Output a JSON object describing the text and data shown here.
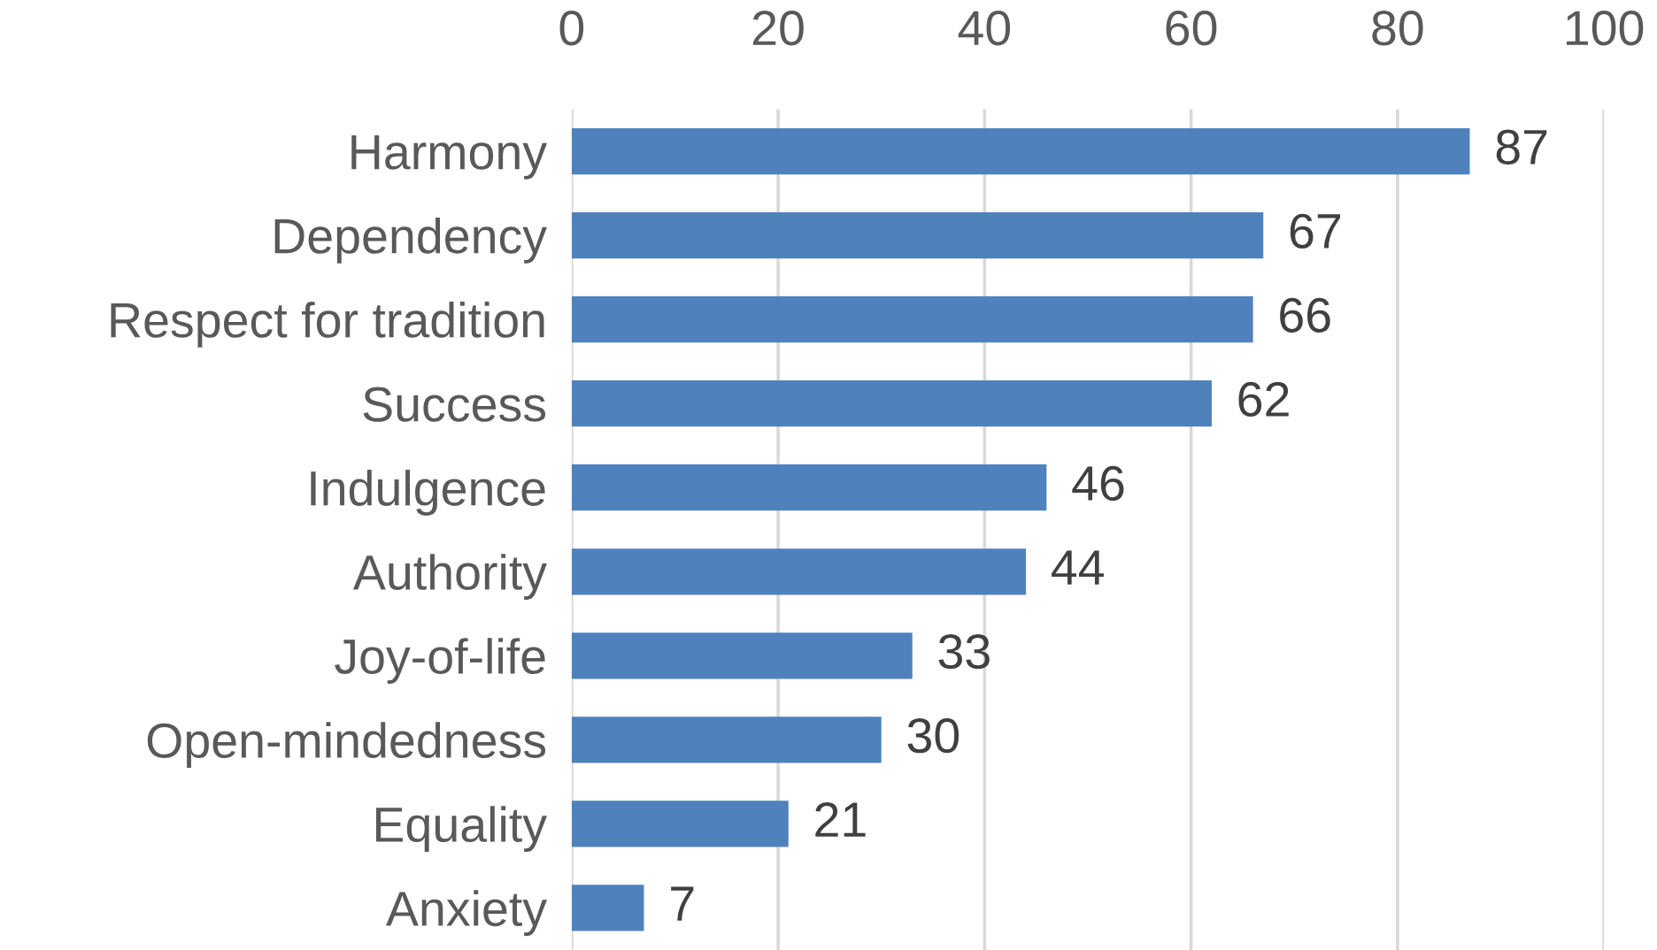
{
  "chart_data": {
    "type": "bar",
    "orientation": "horizontal",
    "categories": [
      "Harmony",
      "Dependency",
      "Respect for tradition",
      "Success",
      "Indulgence",
      "Authority",
      "Joy-of-life",
      "Open-mindedness",
      "Equality",
      "Anxiety"
    ],
    "values": [
      87,
      67,
      66,
      62,
      46,
      44,
      33,
      30,
      21,
      7
    ],
    "color": "#4f81bd",
    "xlim": [
      0,
      100
    ],
    "xticks": [
      0,
      20,
      40,
      60,
      80,
      100
    ],
    "grid": "x",
    "data_labels": true
  }
}
